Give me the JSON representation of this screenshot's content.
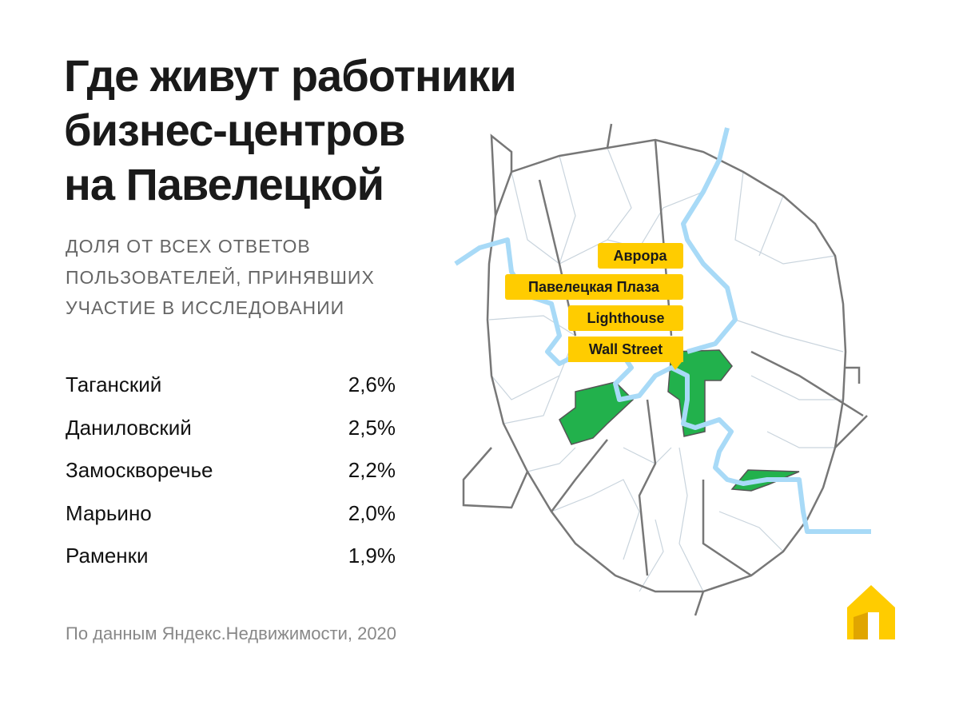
{
  "header": {
    "title_lines": [
      "Где живут работники",
      "бизнес-центров",
      "на Павелецкой"
    ],
    "subtitle_lines": [
      "ДОЛЯ ОТ ВСЕХ ОТВЕТОВ",
      "ПОЛЬЗОВАТЕЛЕЙ, ПРИНЯВШИХ",
      "УЧАСТИЕ В ИССЛЕДОВАНИИ"
    ]
  },
  "table": {
    "rows": [
      [
        "Таганский",
        "2,6%"
      ],
      [
        "Даниловский",
        "2,5%"
      ],
      [
        "Замоскворечье",
        "2,2%"
      ],
      [
        "Марьино",
        "2,0%"
      ],
      [
        "Раменки",
        "1,9%"
      ]
    ]
  },
  "map": {
    "labels": [
      "Аврора",
      "Павелецкая Плаза",
      "Lighthouse",
      "Wall Street"
    ]
  },
  "footer": {
    "source": "По данным Яндекс.Недвижимости, 2020"
  }
}
